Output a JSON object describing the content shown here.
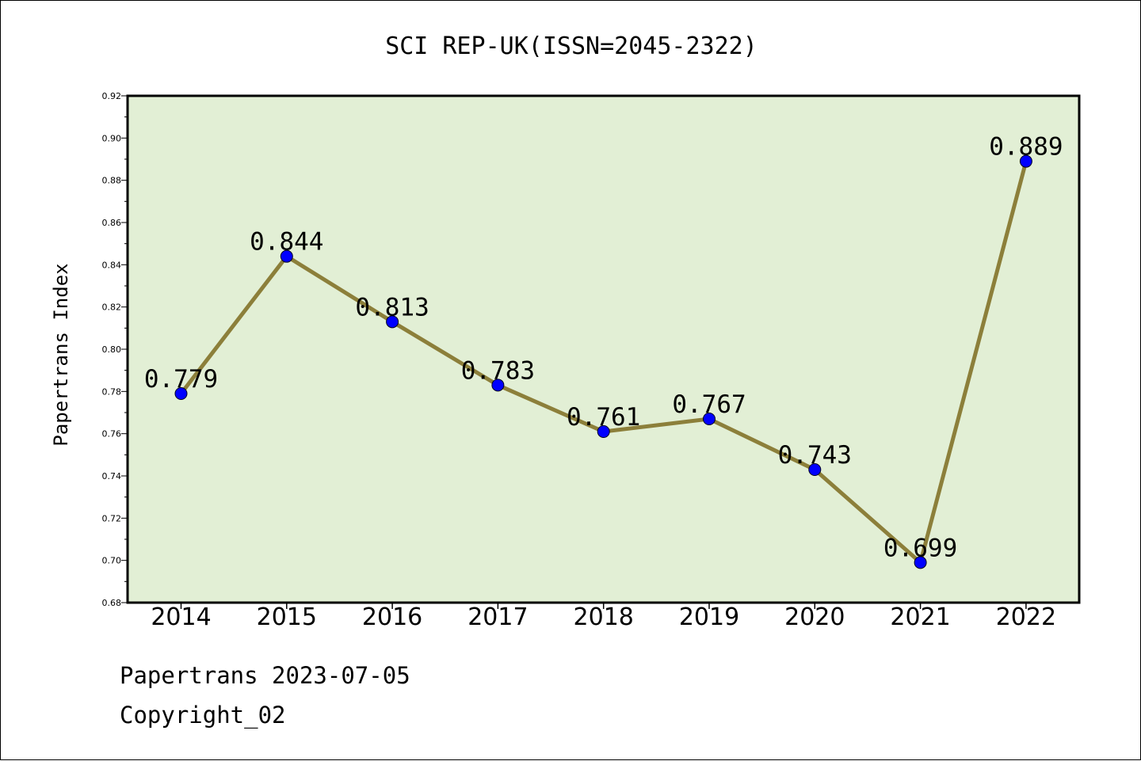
{
  "chart_data": {
    "type": "line",
    "title": "SCI REP-UK(ISSN=2045-2322)",
    "xlabel": "",
    "ylabel": "Papertrans Index",
    "categories": [
      "2014",
      "2015",
      "2016",
      "2017",
      "2018",
      "2019",
      "2020",
      "2021",
      "2022"
    ],
    "series": [
      {
        "values": [
          0.779,
          0.844,
          0.813,
          0.783,
          0.761,
          0.767,
          0.743,
          0.699,
          0.889
        ],
        "data_labels": [
          "0.779",
          "0.844",
          "0.813",
          "0.783",
          "0.761",
          "0.767",
          "0.743",
          "0.699",
          "0.889"
        ]
      }
    ],
    "ylim": [
      0.68,
      0.92
    ],
    "yticks": [
      "0.68",
      "0.70",
      "0.72",
      "0.74",
      "0.76",
      "0.78",
      "0.80",
      "0.82",
      "0.84",
      "0.86",
      "0.88",
      "0.90",
      "0.92"
    ],
    "grid": false,
    "colors": {
      "plot_background": "#e2efd5",
      "line": "#8c7f3a",
      "marker": "#0000ff"
    }
  },
  "footer": {
    "date_text": "Papertrans 2023-07-05",
    "copyright_text": "Copyright_02"
  }
}
